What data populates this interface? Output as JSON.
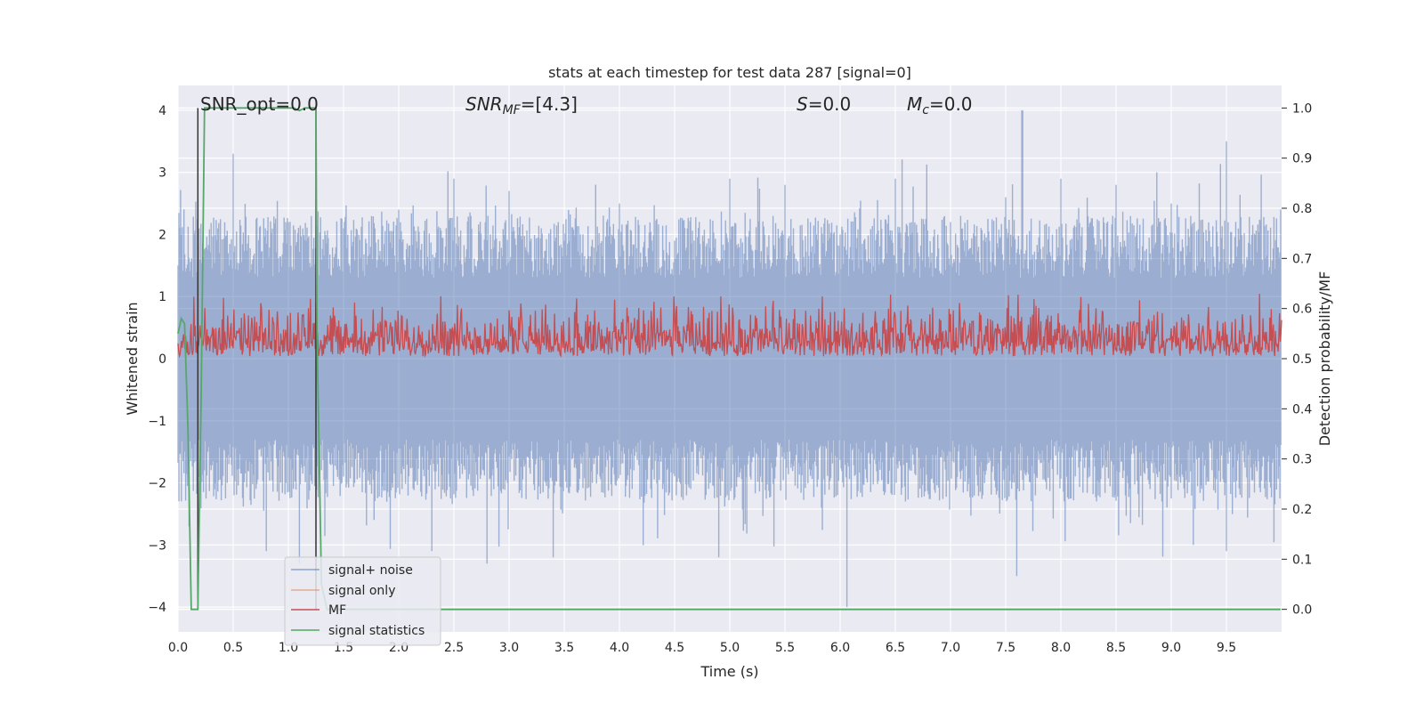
{
  "chart_data": {
    "type": "line",
    "title": "stats at each timestep for test data 287 [signal=0]",
    "xlabel": "Time (s)",
    "ylabel": "Whitened strain",
    "y2label": "Detection probability/MF",
    "xlim": [
      0,
      10
    ],
    "ylim": [
      -4.4,
      4.4
    ],
    "y2lim": [
      -0.045,
      1.045
    ],
    "xticks": [
      "0.0",
      "0.5",
      "1.0",
      "1.5",
      "2.0",
      "2.5",
      "3.0",
      "3.5",
      "4.0",
      "4.5",
      "5.0",
      "5.5",
      "6.0",
      "6.5",
      "7.0",
      "7.5",
      "8.0",
      "8.5",
      "9.0",
      "9.5"
    ],
    "xtick_values": [
      0,
      0.5,
      1,
      1.5,
      2,
      2.5,
      3,
      3.5,
      4,
      4.5,
      5,
      5.5,
      6,
      6.5,
      7,
      7.5,
      8,
      8.5,
      9,
      9.5
    ],
    "yticks": [
      "−4",
      "−3",
      "−2",
      "−1",
      "0",
      "1",
      "2",
      "3",
      "4"
    ],
    "ytick_values": [
      -4,
      -3,
      -2,
      -1,
      0,
      1,
      2,
      3,
      4
    ],
    "y2ticks": [
      "0.0",
      "0.1",
      "0.2",
      "0.3",
      "0.4",
      "0.5",
      "0.6",
      "0.7",
      "0.8",
      "0.9",
      "1.0"
    ],
    "y2tick_values": [
      0,
      0.1,
      0.2,
      0.3,
      0.4,
      0.5,
      0.6,
      0.7,
      0.8,
      0.9,
      1.0
    ],
    "grid": true,
    "legend_placement": "lower-left",
    "annotations": {
      "snr_opt": "SNR_opt=0.0",
      "snr_mf_main": "SNR",
      "snr_mf_sub": "MF",
      "snr_mf_value": "=[4.3]",
      "s_label": "S",
      "s_value": "=0.0",
      "mc_label": "M",
      "mc_sub": "c",
      "mc_value": "=0.0"
    },
    "series": [
      {
        "name": "signal+ noise",
        "color": "#4c72b0",
        "axis": "left",
        "description_samples": [
          [
            0,
            1.5
          ],
          [
            0.5,
            3.3
          ],
          [
            1.0,
            2.2
          ],
          [
            1.5,
            2.1
          ],
          [
            2.0,
            2.4
          ],
          [
            2.5,
            2.9
          ],
          [
            3.0,
            2.7
          ],
          [
            3.5,
            1.9
          ],
          [
            4.0,
            2.5
          ],
          [
            4.5,
            1.9
          ],
          [
            5.0,
            2.9
          ],
          [
            5.5,
            2.8
          ],
          [
            6.0,
            2.0
          ],
          [
            6.5,
            2.9
          ],
          [
            7.0,
            2.2
          ],
          [
            7.5,
            2.6
          ],
          [
            7.65,
            4.0
          ],
          [
            8.0,
            2.9
          ],
          [
            8.5,
            2.8
          ],
          [
            9.0,
            2.5
          ],
          [
            9.5,
            3.5
          ],
          [
            9.99,
            2.4
          ]
        ],
        "negative_extremes": [
          [
            0.1,
            -2.7
          ],
          [
            0.8,
            -3.1
          ],
          [
            1.1,
            -3.3
          ],
          [
            2.3,
            -3.1
          ],
          [
            2.8,
            -3.3
          ],
          [
            3.4,
            -3.2
          ],
          [
            4.9,
            -3.2
          ],
          [
            6.06,
            -4.0
          ],
          [
            7.6,
            -3.5
          ],
          [
            9.2,
            -3.0
          ],
          [
            9.5,
            -3.1
          ]
        ]
      },
      {
        "name": "signal only",
        "color": "#dd8452",
        "axis": "left",
        "values_constant": 0
      },
      {
        "name": "MF",
        "color": "#c44e52",
        "axis": "right",
        "baseline": 0.505,
        "typical_peak": 0.6,
        "max_peak": 0.63
      },
      {
        "name": "signal statistics",
        "color": "#55a868",
        "axis": "right",
        "x": [
          0.0,
          0.03,
          0.06,
          0.09,
          0.12,
          0.15,
          0.18,
          0.21,
          0.24,
          0.28,
          1.05,
          1.1,
          1.15,
          1.2,
          1.25,
          1.26,
          1.3,
          1.35,
          2.0,
          5.0,
          9.99
        ],
        "values": [
          0.55,
          0.58,
          0.57,
          0.36,
          0.0,
          0.0,
          0.0,
          0.42,
          1.0,
          1.0,
          1.0,
          0.995,
          1.0,
          1.0,
          1.0,
          0.55,
          0.05,
          0.0,
          0.0,
          0.0,
          0.0
        ]
      }
    ],
    "vlines": [
      {
        "x": 0.18,
        "color": "#333333"
      },
      {
        "x": 1.25,
        "color": "#333333"
      }
    ]
  }
}
